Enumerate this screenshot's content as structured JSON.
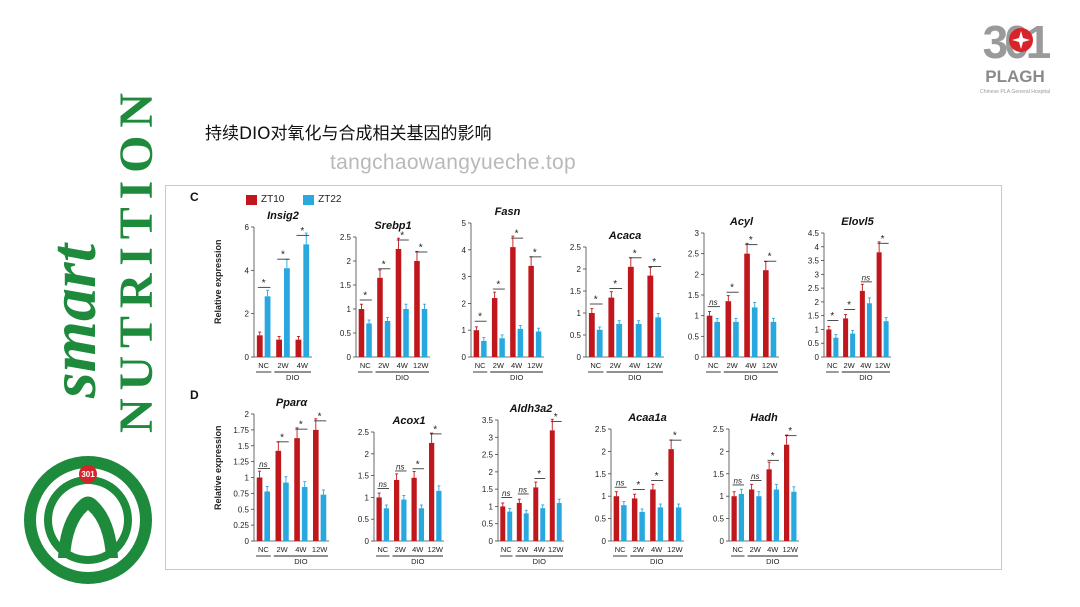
{
  "slide": {
    "title": "持续DIO对氧化与合成相关基因的影响",
    "watermark": "tangchaowangyueche.top"
  },
  "branding": {
    "left_logo": "smart NUTRITION",
    "left_logo_word1": "smart",
    "left_logo_word2": "NUTRITION",
    "emblem_text": "301",
    "right_logo_number": "301",
    "right_logo_name": "PLAGH",
    "right_logo_subtitle": "Chinese PLA General Hospital",
    "green": "#1d8a3c",
    "red": "#d9232a"
  },
  "legend": {
    "series": [
      {
        "name": "ZT10",
        "color": "#c0171c"
      },
      {
        "name": "ZT22",
        "color": "#29a8e0"
      }
    ]
  },
  "panels": [
    {
      "letter": "C",
      "ylabel": "Relative expression"
    },
    {
      "letter": "D",
      "ylabel": "Relative expression"
    }
  ],
  "chart_data": [
    {
      "type": "bar",
      "panel": "C",
      "title": "Insig2",
      "categories": [
        "NC",
        "2W",
        "4W"
      ],
      "group_label": "DIO",
      "yticks": [
        0,
        2,
        4,
        6
      ],
      "ylim": [
        0,
        6
      ],
      "series": [
        {
          "name": "ZT10",
          "values": [
            1.0,
            0.8,
            0.8
          ]
        },
        {
          "name": "ZT22",
          "values": [
            2.8,
            4.1,
            5.2
          ]
        }
      ],
      "annotations": [
        "*",
        "*",
        "*"
      ]
    },
    {
      "type": "bar",
      "panel": "C",
      "title": "Srebp1",
      "categories": [
        "NC",
        "2W",
        "4W",
        "12W"
      ],
      "group_label": "DIO",
      "yticks": [
        0,
        0.5,
        1,
        1.5,
        2,
        2.5
      ],
      "ylim": [
        0,
        2.5
      ],
      "series": [
        {
          "name": "ZT10",
          "values": [
            1.0,
            1.65,
            2.25,
            2.0
          ]
        },
        {
          "name": "ZT22",
          "values": [
            0.7,
            0.75,
            1.0,
            1.0
          ]
        }
      ],
      "annotations": [
        "*",
        "*",
        "*",
        "*"
      ]
    },
    {
      "type": "bar",
      "panel": "C",
      "title": "Fasn",
      "categories": [
        "NC",
        "2W",
        "4W",
        "12W"
      ],
      "group_label": "DIO",
      "yticks": [
        0,
        1,
        2,
        3,
        4,
        5
      ],
      "ylim": [
        0,
        5
      ],
      "series": [
        {
          "name": "ZT10",
          "values": [
            1.0,
            2.2,
            4.1,
            3.4
          ]
        },
        {
          "name": "ZT22",
          "values": [
            0.6,
            0.7,
            1.05,
            0.95
          ]
        }
      ],
      "annotations": [
        "*",
        "*",
        "*",
        "*"
      ]
    },
    {
      "type": "bar",
      "panel": "C",
      "title": "Acaca",
      "categories": [
        "NC",
        "2W",
        "4W",
        "12W"
      ],
      "group_label": "DIO",
      "yticks": [
        0,
        0.5,
        1,
        1.5,
        2,
        2.5
      ],
      "ylim": [
        0,
        2.5
      ],
      "series": [
        {
          "name": "ZT10",
          "values": [
            1.0,
            1.35,
            2.05,
            1.85
          ]
        },
        {
          "name": "ZT22",
          "values": [
            0.62,
            0.75,
            0.75,
            0.9
          ]
        }
      ],
      "annotations": [
        "*",
        "*",
        "*",
        "*"
      ]
    },
    {
      "type": "bar",
      "panel": "C",
      "title": "Acyl",
      "categories": [
        "NC",
        "2W",
        "4W",
        "12W"
      ],
      "group_label": "DIO",
      "yticks": [
        0,
        0.5,
        1,
        1.5,
        2,
        2.5,
        3
      ],
      "ylim": [
        0,
        3
      ],
      "series": [
        {
          "name": "ZT10",
          "values": [
            1.0,
            1.35,
            2.5,
            2.1
          ]
        },
        {
          "name": "ZT22",
          "values": [
            0.85,
            0.85,
            1.2,
            0.85
          ]
        }
      ],
      "annotations": [
        "ns",
        "*",
        "*",
        "*"
      ]
    },
    {
      "type": "bar",
      "panel": "C",
      "title": "Elovl5",
      "categories": [
        "NC",
        "2W",
        "4W",
        "12W"
      ],
      "group_label": "DIO",
      "yticks": [
        0,
        0.5,
        1,
        1.5,
        2,
        2.5,
        3,
        3.5,
        4,
        4.5
      ],
      "ylim": [
        0,
        4.5
      ],
      "series": [
        {
          "name": "ZT10",
          "values": [
            1.0,
            1.4,
            2.4,
            3.8
          ]
        },
        {
          "name": "ZT22",
          "values": [
            0.7,
            0.85,
            1.95,
            1.3
          ]
        }
      ],
      "annotations": [
        "*",
        "*",
        "ns",
        "*"
      ]
    },
    {
      "type": "bar",
      "panel": "D",
      "title": "Pparα",
      "categories": [
        "NC",
        "2W",
        "4W",
        "12W"
      ],
      "group_label": "DIO",
      "yticks": [
        0,
        0.25,
        0.5,
        0.75,
        1,
        1.25,
        1.5,
        1.75,
        2
      ],
      "ylim": [
        0,
        2
      ],
      "series": [
        {
          "name": "ZT10",
          "values": [
            1.0,
            1.42,
            1.62,
            1.75
          ]
        },
        {
          "name": "ZT22",
          "values": [
            0.78,
            0.92,
            0.85,
            0.73
          ]
        }
      ],
      "annotations": [
        "ns",
        "*",
        "*",
        "*"
      ]
    },
    {
      "type": "bar",
      "panel": "D",
      "title": "Acox1",
      "categories": [
        "NC",
        "2W",
        "4W",
        "12W"
      ],
      "group_label": "DIO",
      "yticks": [
        0,
        0.5,
        1,
        1.5,
        2,
        2.5
      ],
      "ylim": [
        0,
        2.5
      ],
      "series": [
        {
          "name": "ZT10",
          "values": [
            1.0,
            1.4,
            1.45,
            2.25
          ]
        },
        {
          "name": "ZT22",
          "values": [
            0.75,
            0.95,
            0.75,
            1.15
          ]
        }
      ],
      "annotations": [
        "ns",
        "ns",
        "*",
        "*"
      ]
    },
    {
      "type": "bar",
      "panel": "D",
      "title": "Aldh3a2",
      "categories": [
        "NC",
        "2W",
        "4W",
        "12W"
      ],
      "group_label": "DIO",
      "yticks": [
        0,
        0.5,
        1,
        1.5,
        2,
        2.5,
        3,
        3.5
      ],
      "ylim": [
        0,
        3.5
      ],
      "series": [
        {
          "name": "ZT10",
          "values": [
            1.0,
            1.1,
            1.55,
            3.2
          ]
        },
        {
          "name": "ZT22",
          "values": [
            0.85,
            0.8,
            0.95,
            1.1
          ]
        }
      ],
      "annotations": [
        "ns",
        "ns",
        "*",
        "*"
      ]
    },
    {
      "type": "bar",
      "panel": "D",
      "title": "Acaa1a",
      "categories": [
        "NC",
        "2W",
        "4W",
        "12W"
      ],
      "group_label": "DIO",
      "yticks": [
        0,
        0.5,
        1,
        1.5,
        2,
        2.5
      ],
      "ylim": [
        0,
        2.5
      ],
      "series": [
        {
          "name": "ZT10",
          "values": [
            1.0,
            0.95,
            1.15,
            2.05
          ]
        },
        {
          "name": "ZT22",
          "values": [
            0.8,
            0.65,
            0.75,
            0.75
          ]
        }
      ],
      "annotations": [
        "ns",
        "*",
        "*",
        "*"
      ]
    },
    {
      "type": "bar",
      "panel": "D",
      "title": "Hadh",
      "categories": [
        "NC",
        "2W",
        "4W",
        "12W"
      ],
      "group_label": "DIO",
      "yticks": [
        0,
        0.5,
        1,
        1.5,
        2,
        2.5
      ],
      "ylim": [
        0,
        2.5
      ],
      "series": [
        {
          "name": "ZT10",
          "values": [
            1.0,
            1.15,
            1.6,
            2.15
          ]
        },
        {
          "name": "ZT22",
          "values": [
            1.05,
            1.0,
            1.15,
            1.1
          ]
        }
      ],
      "annotations": [
        "ns",
        "ns",
        "*",
        "*"
      ]
    }
  ]
}
